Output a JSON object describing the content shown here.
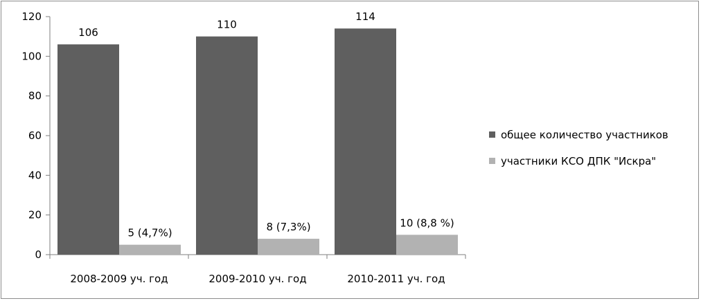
{
  "chart_data": {
    "type": "bar",
    "categories": [
      "2008-2009 уч. год",
      "2009-2010 уч. год",
      "2010-2011 уч. год"
    ],
    "series": [
      {
        "name": "общее количество участников",
        "values": [
          106,
          110,
          114
        ],
        "data_labels": [
          "106",
          "110",
          "114"
        ],
        "color": "#5f5f5f"
      },
      {
        "name": "участники КСО ДПК \"Искра\"",
        "values": [
          5,
          8,
          10
        ],
        "data_labels": [
          "5 (4,7%)",
          "8 (7,3%)",
          "10 (8,8 %)"
        ],
        "color": "#b2b2b2"
      }
    ],
    "ylim": [
      0,
      120
    ],
    "yticks": [
      0,
      20,
      40,
      60,
      80,
      100,
      120
    ],
    "grid": false,
    "legend": "right"
  }
}
